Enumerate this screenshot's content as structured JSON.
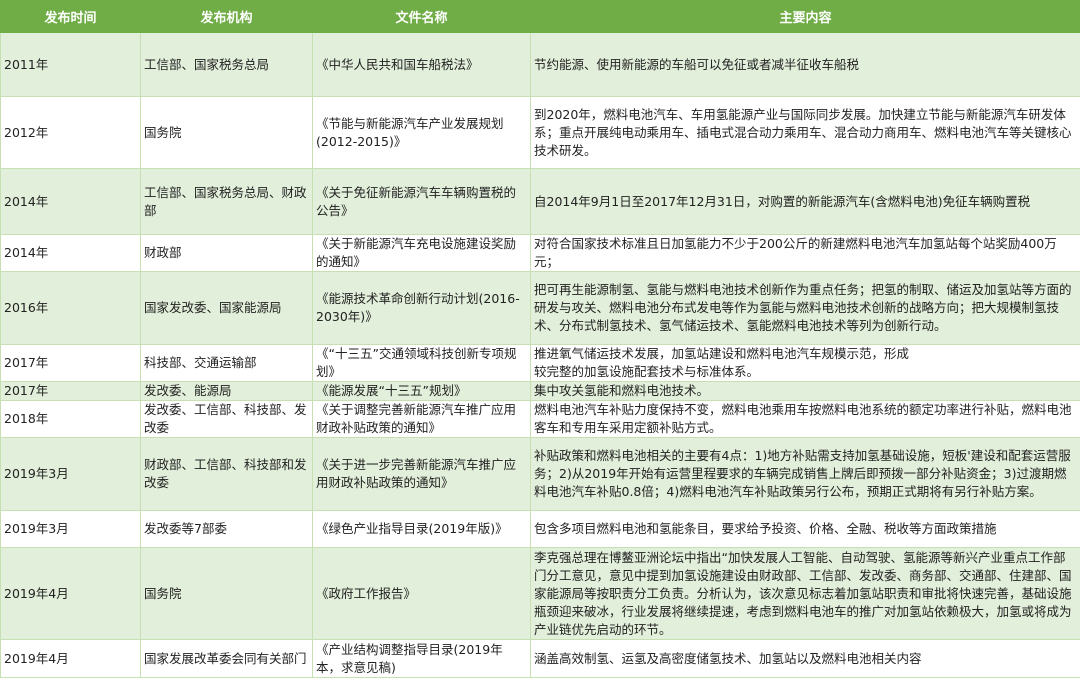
{
  "headers": [
    "发布时间",
    "发布机构",
    "文件名称",
    "主要内容"
  ],
  "colors": {
    "header": "#70ad47",
    "row_alt": "#e2efda",
    "border": "#c6e0b4"
  },
  "rows": [
    {
      "time": "2011年",
      "org": "工信部、国家税务总局",
      "doc": "《中华人民共和国车船税法》",
      "content": "节约能源、使用新能源的车船可以免征或者减半征收车船税"
    },
    {
      "time": "2012年",
      "org": "国务院",
      "doc": "《节能与新能源汽车产业发展规划(2012-2015)》",
      "content": "到2020年，燃料电池汽车、车用氢能源产业与国际同步发展。加快建立节能与新能源汽车研发体系；重点开展纯电动乘用车、插电式混合动力乘用车、混合动力商用车、燃料电池汽车等关键核心技术研发。"
    },
    {
      "time": "2014年",
      "org": "工信部、国家税务总局、财政部",
      "doc": "《关于免征新能源汽车车辆购置税的公告》",
      "content": "自2014年9月1日至2017年12月31日，对购置的新能源汽车(含燃料电池)免征车辆购置税"
    },
    {
      "time": "2014年",
      "org": "财政部",
      "doc": "《关于新能源汽车充电设施建设奖励的通知》",
      "content": "对符合国家技术标准且日加氢能力不少于200公斤的新建燃料电池汽车加氢站每个站奖励400万元；"
    },
    {
      "time": "2016年",
      "org": "国家发改委、国家能源局",
      "doc": "《能源技术革命创新行动计划(2016-2030年)》",
      "content": "把可再生能源制氢、氢能与燃料电池技术创新作为重点任务；把氢的制取、储运及加氢站等方面的研发与攻关、燃料电池分布式发电等作为氢能与燃料电池技术创新的战略方向；把大规模制氢技术、分布式制氢技术、氢气储运技术、氢能燃料电池技术等列为创新行动。"
    },
    {
      "time": "2017年",
      "org": "科技部、交通运输部",
      "doc": "《“十三五”交通领域科技创新专项规划》",
      "content": "推进氧气储运技术发展，加氢站建设和燃料电池汽车规模示范，形成\n较完整的加氢设施配套技术与标准体系。"
    },
    {
      "time": "2017年",
      "org": "发改委、能源局",
      "doc": "《能源发展“十三五”规划》",
      "content": "集中攻关氢能和燃料电池技术。"
    },
    {
      "time": "2018年",
      "org": "发改委、工信部、科技部、发改委",
      "doc": "《关于调整完善新能源汽车推广应用财政补贴政策的通知》",
      "content": "燃料电池汽车补贴力度保持不变，燃料电池乘用车按燃料电池系统的额定功率进行补贴，燃料电池客车和专用车采用定额补贴方式。"
    },
    {
      "time": "2019年3月",
      "org": "财政部、工信部、科技部和发改委",
      "doc": "《关于进一步完善新能源汽车推广应用财政补贴政策的通知》",
      "content": "补贴政策和燃料电池相关的主要有4点：1)地方补贴需支持加氢基础设施，短板'建设和配套运营服务；2)从2019年开始有运营里程要求的车辆完成销售上牌后即预拨一部分补贴资金；3)过渡期燃料电池汽车补贴0.8倍；4)燃料电池汽车补贴政策另行公布，预期正式期将有另行补贴方案。"
    },
    {
      "time": "2019年3月",
      "org": "发改委等7部委",
      "doc": "《绿色产业指导目录(2019年版)》",
      "content": "包含多项目燃料电池和氢能条目，要求给予投资、价格、全融、税收等方面政策措施"
    },
    {
      "time": "2019年4月",
      "org": "国务院",
      "doc": "《政府工作报告》",
      "content": "李克强总理在博鳌亚洲论坛中指出“加快发展人工智能、自动驾驶、氢能源等新兴产业重点工作部门分工意见，意见中提到加氢设施建设由财政部、工信部、发改委、商务部、交通部、住建部、国家能源局等按职责分工负责。分析认为，该次意见标志着加氢站职责和审批将快速完善，基础设施瓶颈迎来破冰，行业发展将继续提速，考虑到燃料电池车的推广对加氢站依赖极大，加氢或将成为产业链优先启动的环节。"
    },
    {
      "time": "2019年4月",
      "org": "国家发展改革委会同有关部门",
      "doc": "《产业结构调整指导目录(2019年本，求意见稿)",
      "content": "涵盖高效制氢、运氢及高密度储氢技术、加氢站以及燃料电池相关内容"
    }
  ]
}
